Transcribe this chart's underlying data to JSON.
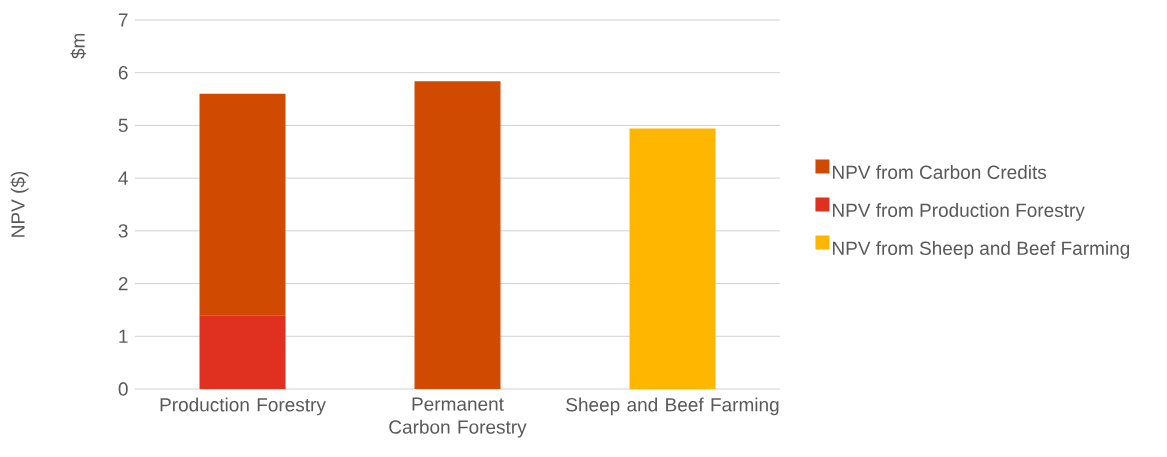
{
  "chart_data": {
    "type": "bar",
    "stacked": true,
    "ylabel": "NPV ($)",
    "annotations": [
      "$m"
    ],
    "categories": [
      "Production Forestry",
      "Permanent Carbon Forestry",
      "Sheep and Beef Farming"
    ],
    "series": [
      {
        "name": "NPV from Carbon Credits",
        "color": "#d04a02",
        "values": [
          4.2,
          5.84,
          null
        ]
      },
      {
        "name": "NPV from Production Forestry",
        "color": "#e03020",
        "values": [
          1.4,
          null,
          null
        ]
      },
      {
        "name": "NPV from Sheep and Beef Farming",
        "color": "#ffb600",
        "values": [
          null,
          null,
          4.94
        ]
      }
    ],
    "ylim": [
      0,
      7
    ],
    "yticks": [
      0,
      1,
      2,
      3,
      4,
      5,
      6,
      7
    ],
    "grid": "y",
    "legend": "right"
  }
}
